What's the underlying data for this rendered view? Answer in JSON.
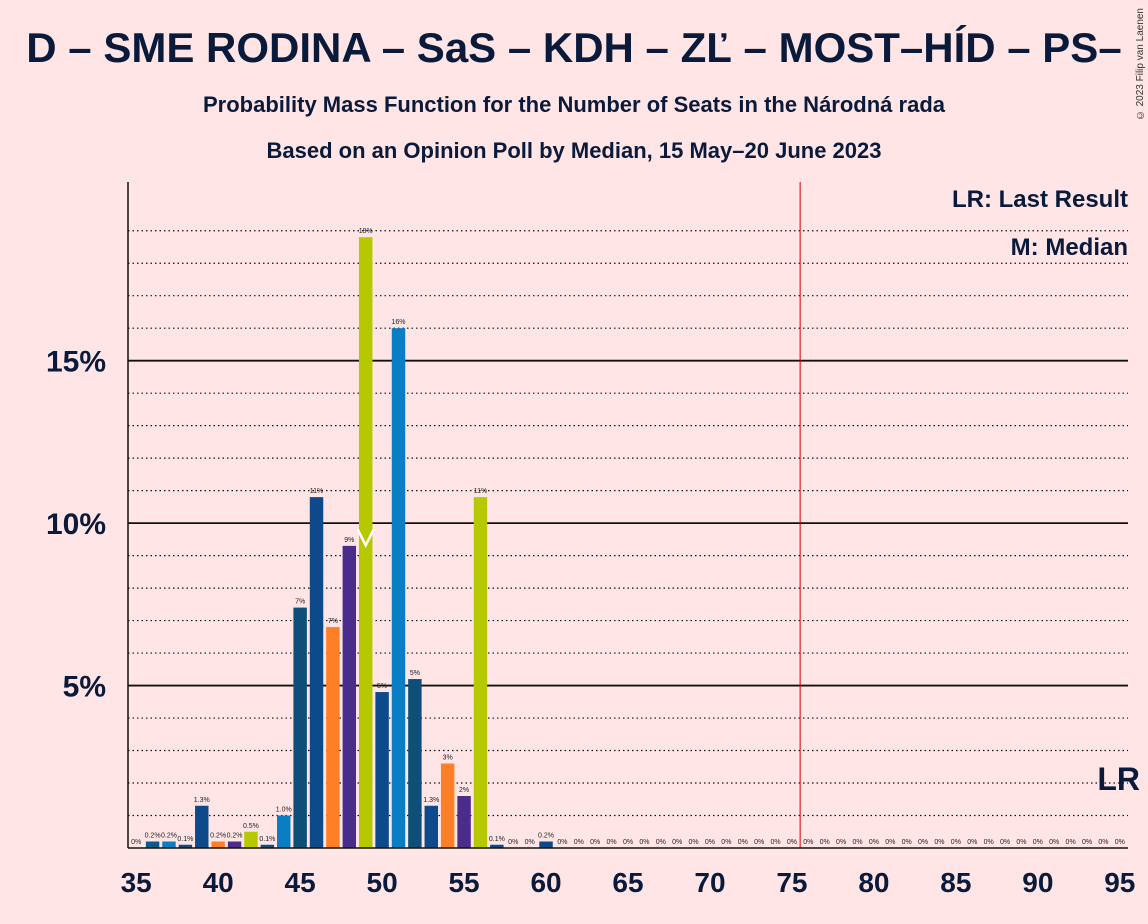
{
  "title": "D – SME RODINA – SaS – KDH – ZĽ – MOST–HÍD – PS–",
  "subtitle": "Probability Mass Function for the Number of Seats in the Národná rada",
  "subtitle2": "Based on an Opinion Poll by Median, 15 May–20 June 2023",
  "copyright": "© 2023 Filip van Laenen",
  "legend": {
    "lr": "LR: Last Result",
    "m": "M: Median",
    "lr_mark": "LR"
  },
  "colors": {
    "background": "#ffe5e5",
    "navy": "#0d4a8c",
    "teal": "#0b5a8a",
    "orange": "#ff7f27",
    "purple": "#4a2c8c",
    "lime": "#b5c800",
    "blue": "#0a7ec4",
    "darkteal": "#0e4f7a",
    "lastresult": "#d40000"
  },
  "chart_data": {
    "type": "bar",
    "xlabel": "",
    "ylabel": "",
    "x_ticks": [
      35,
      40,
      45,
      50,
      55,
      60,
      65,
      70,
      75,
      80,
      85,
      90,
      95
    ],
    "y_ticks": [
      "5%",
      "10%",
      "15%"
    ],
    "y_tick_values": [
      5,
      10,
      15
    ],
    "xlim": [
      34.5,
      95.5
    ],
    "ylim": [
      0,
      20.5
    ],
    "last_result": 76,
    "median": 49,
    "bars": [
      {
        "x": 35,
        "value": 0,
        "label": "0%",
        "color": "navy"
      },
      {
        "x": 36,
        "value": 0.2,
        "label": "0.2%",
        "color": "teal"
      },
      {
        "x": 37,
        "value": 0.2,
        "label": "0.2%",
        "color": "blue"
      },
      {
        "x": 38,
        "value": 0.1,
        "label": "0.1%",
        "color": "darkteal"
      },
      {
        "x": 39,
        "value": 1.3,
        "label": "1.3%",
        "color": "navy"
      },
      {
        "x": 40,
        "value": 0.2,
        "label": "0.2%",
        "color": "orange"
      },
      {
        "x": 41,
        "value": 0.2,
        "label": "0.2%",
        "color": "purple"
      },
      {
        "x": 42,
        "value": 0.5,
        "label": "0.5%",
        "color": "lime"
      },
      {
        "x": 43,
        "value": 0.1,
        "label": "0.1%",
        "color": "darkteal"
      },
      {
        "x": 44,
        "value": 1.0,
        "label": "1.0%",
        "color": "blue"
      },
      {
        "x": 45,
        "value": 7.4,
        "label": "7%",
        "color": "darkteal"
      },
      {
        "x": 46,
        "value": 10.8,
        "label": "11%",
        "color": "navy"
      },
      {
        "x": 47,
        "value": 6.8,
        "label": "7%",
        "color": "orange"
      },
      {
        "x": 48,
        "value": 9.3,
        "label": "9%",
        "color": "purple"
      },
      {
        "x": 49,
        "value": 18.8,
        "label": "19%",
        "color": "lime"
      },
      {
        "x": 50,
        "value": 4.8,
        "label": "5%",
        "color": "navy"
      },
      {
        "x": 51,
        "value": 16.0,
        "label": "16%",
        "color": "blue"
      },
      {
        "x": 52,
        "value": 5.2,
        "label": "5%",
        "color": "darkteal"
      },
      {
        "x": 53,
        "value": 1.3,
        "label": "1.3%",
        "color": "navy"
      },
      {
        "x": 54,
        "value": 2.6,
        "label": "3%",
        "color": "orange"
      },
      {
        "x": 55,
        "value": 1.6,
        "label": "2%",
        "color": "purple"
      },
      {
        "x": 56,
        "value": 10.8,
        "label": "11%",
        "color": "lime"
      },
      {
        "x": 57,
        "value": 0.1,
        "label": "0.1%",
        "color": "navy"
      },
      {
        "x": 58,
        "value": 0,
        "label": "0%",
        "color": "blue"
      },
      {
        "x": 59,
        "value": 0,
        "label": "0%",
        "color": "darkteal"
      },
      {
        "x": 60,
        "value": 0.2,
        "label": "0.2%",
        "color": "navy"
      },
      {
        "x": 61,
        "value": 0,
        "label": "0%",
        "color": "navy"
      },
      {
        "x": 62,
        "value": 0,
        "label": "0%",
        "color": "navy"
      },
      {
        "x": 63,
        "value": 0,
        "label": "0%",
        "color": "navy"
      },
      {
        "x": 64,
        "value": 0,
        "label": "0%",
        "color": "navy"
      },
      {
        "x": 65,
        "value": 0,
        "label": "0%",
        "color": "navy"
      },
      {
        "x": 66,
        "value": 0,
        "label": "0%",
        "color": "navy"
      },
      {
        "x": 67,
        "value": 0,
        "label": "0%",
        "color": "navy"
      },
      {
        "x": 68,
        "value": 0,
        "label": "0%",
        "color": "navy"
      },
      {
        "x": 69,
        "value": 0,
        "label": "0%",
        "color": "navy"
      },
      {
        "x": 70,
        "value": 0,
        "label": "0%",
        "color": "navy"
      },
      {
        "x": 71,
        "value": 0,
        "label": "0%",
        "color": "navy"
      },
      {
        "x": 72,
        "value": 0,
        "label": "0%",
        "color": "navy"
      },
      {
        "x": 73,
        "value": 0,
        "label": "0%",
        "color": "navy"
      },
      {
        "x": 74,
        "value": 0,
        "label": "0%",
        "color": "navy"
      },
      {
        "x": 75,
        "value": 0,
        "label": "0%",
        "color": "navy"
      },
      {
        "x": 76,
        "value": 0,
        "label": "0%",
        "color": "navy"
      },
      {
        "x": 77,
        "value": 0,
        "label": "0%",
        "color": "navy"
      },
      {
        "x": 78,
        "value": 0,
        "label": "0%",
        "color": "navy"
      },
      {
        "x": 79,
        "value": 0,
        "label": "0%",
        "color": "navy"
      },
      {
        "x": 80,
        "value": 0,
        "label": "0%",
        "color": "navy"
      },
      {
        "x": 81,
        "value": 0,
        "label": "0%",
        "color": "navy"
      },
      {
        "x": 82,
        "value": 0,
        "label": "0%",
        "color": "navy"
      },
      {
        "x": 83,
        "value": 0,
        "label": "0%",
        "color": "navy"
      },
      {
        "x": 84,
        "value": 0,
        "label": "0%",
        "color": "navy"
      },
      {
        "x": 85,
        "value": 0,
        "label": "0%",
        "color": "navy"
      },
      {
        "x": 86,
        "value": 0,
        "label": "0%",
        "color": "navy"
      },
      {
        "x": 87,
        "value": 0,
        "label": "0%",
        "color": "navy"
      },
      {
        "x": 88,
        "value": 0,
        "label": "0%",
        "color": "navy"
      },
      {
        "x": 89,
        "value": 0,
        "label": "0%",
        "color": "navy"
      },
      {
        "x": 90,
        "value": 0,
        "label": "0%",
        "color": "navy"
      },
      {
        "x": 91,
        "value": 0,
        "label": "0%",
        "color": "navy"
      },
      {
        "x": 92,
        "value": 0,
        "label": "0%",
        "color": "navy"
      },
      {
        "x": 93,
        "value": 0,
        "label": "0%",
        "color": "navy"
      },
      {
        "x": 94,
        "value": 0,
        "label": "0%",
        "color": "navy"
      },
      {
        "x": 95,
        "value": 0,
        "label": "0%",
        "color": "navy"
      }
    ]
  }
}
